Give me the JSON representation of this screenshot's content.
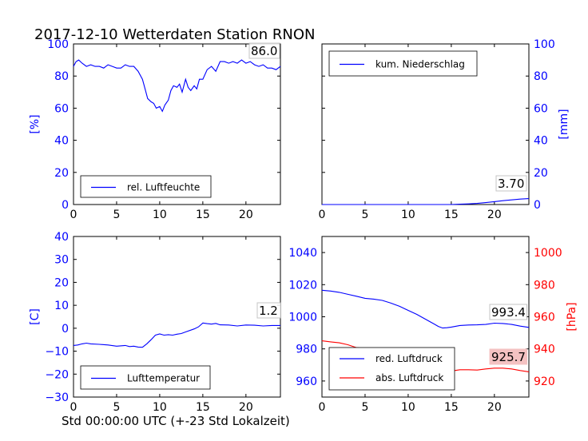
{
  "title": "2017-12-10 Wetterdaten Station RNON",
  "footer_xlabel": "Std 00:00:00 UTC (+-23 Std Lokalzeit)",
  "colors": {
    "blue": "#0000ff",
    "red": "#ff0000",
    "label_box_red": "#f4c2c2"
  },
  "chart_data": [
    {
      "type": "line",
      "ylabel": "[%]",
      "xlim": [
        0,
        24
      ],
      "ylim": [
        0,
        100
      ],
      "xticks": [
        "0",
        "5",
        "10",
        "15",
        "20"
      ],
      "yticks": [
        "0",
        "20",
        "40",
        "60",
        "80",
        "100"
      ],
      "legend": "lower-left",
      "last_value_label": "86.0",
      "series": [
        {
          "name": "rel. Luftfeuchte",
          "color": "#0000ff",
          "x": [
            0,
            0.3,
            0.6,
            1,
            1.5,
            2,
            2.5,
            3,
            3.5,
            4,
            4.5,
            5,
            5.5,
            6,
            6.5,
            7,
            7.5,
            8,
            8.3,
            8.6,
            9,
            9.3,
            9.6,
            10,
            10.3,
            10.6,
            11,
            11.3,
            11.6,
            12,
            12.3,
            12.6,
            13,
            13.3,
            13.6,
            14,
            14.3,
            14.6,
            15,
            15.5,
            16,
            16.5,
            17,
            17.5,
            18,
            18.5,
            19,
            19.5,
            20,
            20.5,
            21,
            21.5,
            22,
            22.5,
            23,
            23.5,
            24
          ],
          "values": [
            86,
            89,
            90,
            88,
            86,
            87,
            86,
            86,
            85,
            87,
            86,
            85,
            85,
            87,
            86,
            86,
            83,
            78,
            72,
            66,
            64,
            63,
            60,
            61,
            58,
            62,
            65,
            71,
            74,
            73,
            75,
            70,
            78,
            73,
            71,
            74,
            72,
            78,
            78,
            84,
            86,
            83,
            89,
            89,
            88,
            89,
            88,
            90,
            88,
            89,
            87,
            86,
            87,
            85,
            85,
            84,
            86
          ]
        }
      ]
    },
    {
      "type": "line",
      "ylabel": "[mm]",
      "xlim": [
        0,
        24
      ],
      "ylim": [
        0,
        100
      ],
      "xticks": [
        "0",
        "5",
        "10",
        "15",
        "20"
      ],
      "yticks": [
        "0",
        "20",
        "40",
        "60",
        "80",
        "100"
      ],
      "yaxis_side": "right",
      "legend": "top-left",
      "last_value_label": "3.70",
      "series": [
        {
          "name": "kum. Niederschlag",
          "color": "#0000ff",
          "x": [
            0,
            5,
            10,
            14,
            15,
            16,
            17,
            18,
            19,
            20,
            21,
            22,
            23,
            24
          ],
          "values": [
            0,
            0,
            0,
            0,
            0,
            0.2,
            0.4,
            0.7,
            1.2,
            1.8,
            2.4,
            2.9,
            3.4,
            3.7
          ]
        }
      ]
    },
    {
      "type": "line",
      "ylabel": "[C]",
      "xlim": [
        0,
        24
      ],
      "ylim": [
        -30,
        40
      ],
      "xticks": [
        "0",
        "5",
        "10",
        "15",
        "20"
      ],
      "yticks": [
        "−30",
        "−20",
        "−10",
        "0",
        "10",
        "20",
        "30",
        "40"
      ],
      "legend": "lower-left",
      "last_value_label": "1.2",
      "series": [
        {
          "name": "Lufttemperatur",
          "color": "#0000ff",
          "x": [
            0,
            0.5,
            1,
            1.5,
            2,
            3,
            4,
            5,
            6,
            6.5,
            7,
            7.5,
            8,
            8.5,
            9,
            9.5,
            10,
            10.5,
            11,
            11.5,
            12,
            12.5,
            13,
            14,
            14.5,
            15,
            15.5,
            16,
            16.5,
            17,
            18,
            19,
            20,
            21,
            22,
            23,
            24
          ],
          "values": [
            -7.5,
            -7.3,
            -6.8,
            -6.5,
            -6.8,
            -7.0,
            -7.3,
            -7.8,
            -7.5,
            -8.0,
            -7.8,
            -8.2,
            -8.3,
            -6.8,
            -5.0,
            -3.0,
            -2.5,
            -3.0,
            -2.8,
            -3.0,
            -2.6,
            -2.3,
            -1.6,
            -0.3,
            0.6,
            2.3,
            2.0,
            1.8,
            2.1,
            1.5,
            1.4,
            1.0,
            1.4,
            1.3,
            1.0,
            1.2,
            1.2
          ]
        }
      ]
    },
    {
      "type": "line",
      "xlim": [
        0,
        24
      ],
      "ylim": [
        950,
        1050
      ],
      "xticks": [
        "0",
        "5",
        "10",
        "15",
        "20"
      ],
      "yticks": [
        "960",
        "980",
        "1000",
        "1020",
        "1040"
      ],
      "legend": "lower-left",
      "y2label": "[hPa]",
      "y2lim": [
        910,
        1010
      ],
      "y2ticks": [
        "920",
        "940",
        "960",
        "980",
        "1000"
      ],
      "series": [
        {
          "name": "red. Luftdruck",
          "axis": "left",
          "color": "#0000ff",
          "last_value_label": "993.4",
          "x": [
            0,
            1,
            2,
            3,
            4,
            5,
            6,
            7,
            8,
            9,
            10,
            11,
            12,
            13,
            13.5,
            14,
            14.5,
            15,
            16,
            17,
            18,
            19,
            20,
            21,
            22,
            23,
            24
          ],
          "values": [
            1016.5,
            1016,
            1015.2,
            1014,
            1012.8,
            1011.5,
            1011,
            1010.2,
            1008.5,
            1006.5,
            1004,
            1001.5,
            998.5,
            995.5,
            994,
            993,
            993.2,
            993.6,
            994.6,
            994.9,
            995,
            995.2,
            996,
            995.8,
            995.2,
            994.2,
            993.4
          ]
        },
        {
          "name": "abs. Luftdruck",
          "axis": "right",
          "color": "#ff0000",
          "last_value_label": "925.7",
          "x": [
            0,
            1,
            2,
            3,
            4,
            5,
            6,
            7,
            8,
            9,
            10,
            11,
            12,
            13,
            14,
            14.5,
            15,
            16,
            17,
            18,
            19,
            20,
            21,
            22,
            23,
            24
          ],
          "values": [
            945,
            944.4,
            943.8,
            942.6,
            940.8,
            940.2,
            939.2,
            937.8,
            936.6,
            935.2,
            934,
            931.8,
            929,
            926.5,
            925,
            925.2,
            926.2,
            927,
            927,
            926.8,
            927.5,
            928,
            928,
            927.5,
            926.5,
            925.7
          ]
        }
      ]
    }
  ]
}
